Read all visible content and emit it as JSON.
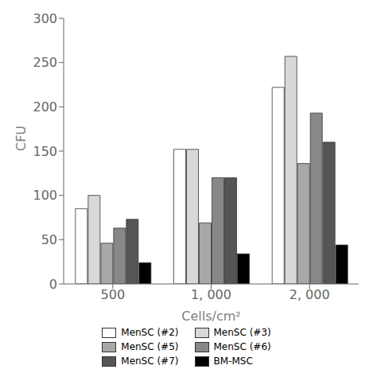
{
  "chart_data": {
    "type": "bar",
    "categories": [
      "500",
      "1, 000",
      "2, 000"
    ],
    "series": [
      {
        "name": "MenSC (#2)",
        "color": "#ffffff",
        "values": [
          85,
          152,
          222
        ]
      },
      {
        "name": "MenSC (#3)",
        "color": "#d8d8d8",
        "values": [
          100,
          152,
          257
        ]
      },
      {
        "name": "MenSC (#5)",
        "color": "#a8a8a8",
        "values": [
          46,
          69,
          136
        ]
      },
      {
        "name": "MenSC (#6)",
        "color": "#888888",
        "values": [
          63,
          120,
          193
        ]
      },
      {
        "name": "MenSC (#7)",
        "color": "#555555",
        "values": [
          73,
          120,
          160
        ]
      },
      {
        "name": "BM-MSC",
        "color": "#000000",
        "values": [
          24,
          34,
          44
        ]
      }
    ],
    "xlabel": "Cells/cm²",
    "ylabel": "CFU",
    "ylim": [
      0,
      300
    ],
    "yticks": [
      0,
      50,
      100,
      150,
      200,
      250,
      300
    ],
    "grid": false,
    "legend": "bottom"
  }
}
